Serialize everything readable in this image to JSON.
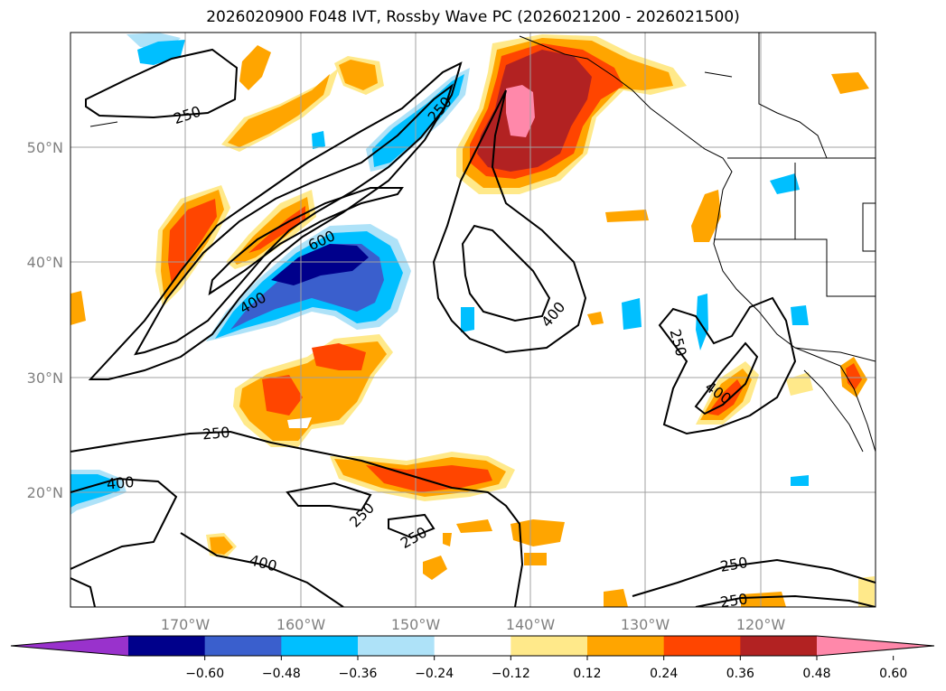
{
  "title": "2026020900 F048 IVT, Rossby Wave PC (2026021200 - 2026021500)",
  "latitudes": [
    {
      "label": "50°N",
      "value": 50
    },
    {
      "label": "40°N",
      "value": 40
    },
    {
      "label": "30°N",
      "value": 30
    },
    {
      "label": "20°N",
      "value": 20
    }
  ],
  "longitudes": [
    {
      "label": "170°W",
      "value": -170
    },
    {
      "label": "160°W",
      "value": -160
    },
    {
      "label": "150°W",
      "value": -150
    },
    {
      "label": "140°W",
      "value": -140
    },
    {
      "label": "130°W",
      "value": -130
    },
    {
      "label": "120°W",
      "value": -120
    }
  ],
  "contour_labels": [
    "250",
    "250",
    "600",
    "400",
    "400",
    "250",
    "400",
    "250",
    "400",
    "250",
    "250",
    "400",
    "250",
    "250"
  ],
  "colorbar": {
    "ticks": [
      "−0.60",
      "−0.48",
      "−0.36",
      "−0.24",
      "−0.12",
      "0.12",
      "0.24",
      "0.36",
      "0.48",
      "0.60"
    ],
    "colors": [
      "#9932cc",
      "#00008b",
      "#3a5fcd",
      "#00bfff",
      "#aee2f8",
      "#ffffff",
      "#ffe98a",
      "#ffa500",
      "#ff4500",
      "#b22222",
      "#ff88aa"
    ]
  }
}
